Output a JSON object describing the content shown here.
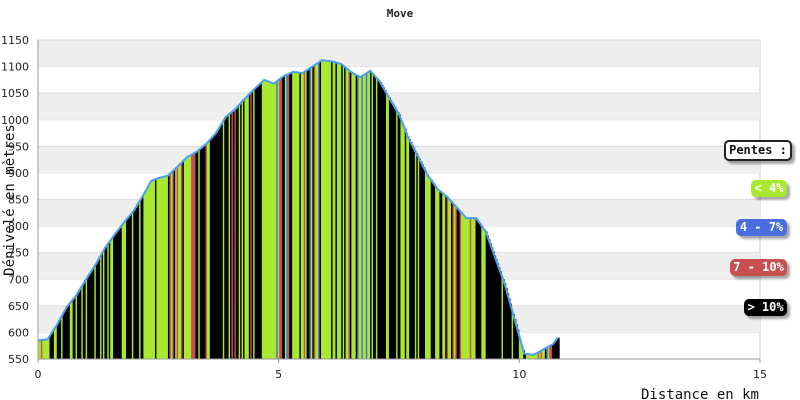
{
  "chart_data": {
    "type": "area",
    "title": "Move",
    "xlabel": "Distance en km",
    "ylabel": "Dénivelé en mètres",
    "xlim": [
      0,
      15
    ],
    "ylim": [
      550,
      1150
    ],
    "x_ticks": [
      "0",
      "5",
      "10",
      "15"
    ],
    "y_ticks": [
      "550",
      "600",
      "650",
      "700",
      "750",
      "800",
      "850",
      "900",
      "950",
      "1000",
      "1050",
      "1100",
      "1150"
    ],
    "grid": "horizontal bands",
    "legend_placement": "right",
    "series": [
      {
        "points": [
          [
            0.0,
            585
          ],
          [
            0.2,
            587
          ],
          [
            0.4,
            615
          ],
          [
            0.6,
            648
          ],
          [
            0.8,
            670
          ],
          [
            1.0,
            700
          ],
          [
            1.2,
            728
          ],
          [
            1.4,
            760
          ],
          [
            1.6,
            785
          ],
          [
            1.8,
            808
          ],
          [
            2.0,
            830
          ],
          [
            2.2,
            860
          ],
          [
            2.35,
            885
          ],
          [
            2.5,
            890
          ],
          [
            2.7,
            895
          ],
          [
            2.9,
            912
          ],
          [
            3.1,
            930
          ],
          [
            3.3,
            940
          ],
          [
            3.5,
            955
          ],
          [
            3.7,
            975
          ],
          [
            3.9,
            1005
          ],
          [
            4.1,
            1020
          ],
          [
            4.3,
            1040
          ],
          [
            4.5,
            1058
          ],
          [
            4.7,
            1075
          ],
          [
            4.9,
            1068
          ],
          [
            5.1,
            1082
          ],
          [
            5.3,
            1090
          ],
          [
            5.5,
            1088
          ],
          [
            5.7,
            1100
          ],
          [
            5.9,
            1112
          ],
          [
            6.1,
            1110
          ],
          [
            6.3,
            1105
          ],
          [
            6.5,
            1090
          ],
          [
            6.7,
            1080
          ],
          [
            6.9,
            1092
          ],
          [
            7.1,
            1072
          ],
          [
            7.3,
            1040
          ],
          [
            7.5,
            1010
          ],
          [
            7.7,
            965
          ],
          [
            7.9,
            930
          ],
          [
            8.1,
            895
          ],
          [
            8.3,
            870
          ],
          [
            8.5,
            855
          ],
          [
            8.7,
            835
          ],
          [
            8.9,
            815
          ],
          [
            9.1,
            815
          ],
          [
            9.3,
            790
          ],
          [
            9.5,
            740
          ],
          [
            9.7,
            690
          ],
          [
            9.9,
            625
          ],
          [
            10.1,
            560
          ],
          [
            10.3,
            558
          ],
          [
            10.5,
            568
          ],
          [
            10.7,
            578
          ],
          [
            10.8,
            590
          ]
        ]
      }
    ],
    "legend": {
      "title": "Pentes :",
      "items": [
        {
          "label": "< 4%",
          "color": "#a8e830"
        },
        {
          "label": "4 - 7%",
          "color": "#4a6ee0"
        },
        {
          "label": "7 - 10%",
          "color": "#c85050"
        },
        {
          "label": "> 10%",
          "color": "#000000"
        }
      ]
    }
  }
}
